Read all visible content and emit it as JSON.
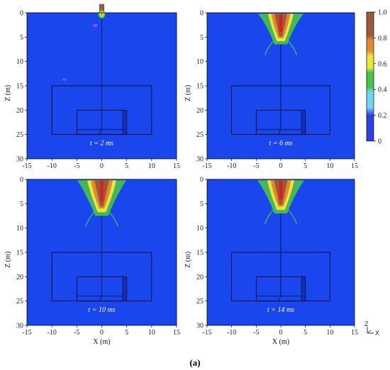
{
  "caption": "(a)",
  "chart_data": {
    "type": "heatmap",
    "field_range": [
      0,
      1
    ],
    "colorbar": {
      "ticks": [
        "1.0",
        "0.8",
        "0.6",
        "0.4",
        "0.2",
        "0"
      ],
      "colors": [
        "#2a42e0",
        "#6fd6f2",
        "#47c44a",
        "#e8e83a",
        "#e38a2e",
        "#9c5a3a"
      ]
    },
    "axes": {
      "xlabel": "X (m)",
      "ylabel": "Z (m)",
      "xlim": [
        -15,
        15
      ],
      "ylim": [
        0,
        30
      ],
      "xticks": [
        "-15",
        "-10",
        "-5",
        "0",
        "5",
        "10",
        "15"
      ],
      "yticks": [
        "0",
        "5",
        "10",
        "15",
        "20",
        "25",
        "30"
      ]
    },
    "panels": [
      {
        "time_label": "t = 2 ms",
        "plume_depth": 0.8
      },
      {
        "time_label": "t = 6 ms",
        "plume_depth": 6.5
      },
      {
        "time_label": "t = 10 ms",
        "plume_depth": 7.5
      },
      {
        "time_label": "t = 14 ms",
        "plume_depth": 7.0
      }
    ],
    "structure": {
      "outer_box": {
        "x": [
          -10,
          10
        ],
        "z": [
          15,
          25
        ]
      },
      "inner_box": {
        "x": [
          -5,
          5
        ],
        "z": [
          20,
          25
        ]
      },
      "inner_divider_z": 24
    }
  },
  "triad": {
    "z": "Z",
    "x": "X"
  },
  "colors": {
    "background": "#1a46ee",
    "lines": "#000000"
  }
}
